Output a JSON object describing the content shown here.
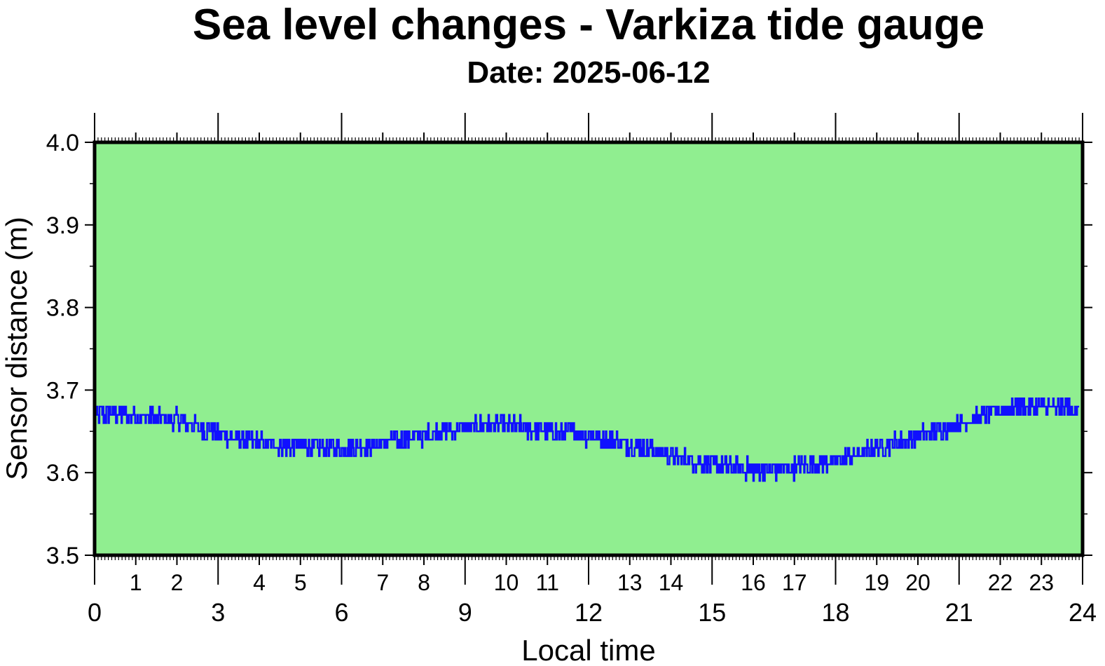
{
  "chart_data": {
    "type": "line",
    "title": "Sea level changes - Varkiza tide gauge",
    "subtitle": "Date: 2025-06-12",
    "xlabel": "Local time",
    "ylabel": "Sensor distance (m)",
    "xlim": [
      0,
      24
    ],
    "ylim": [
      3.5,
      4.0
    ],
    "x_major_ticks": [
      "0",
      "3",
      "6",
      "9",
      "12",
      "15",
      "18",
      "21",
      "24"
    ],
    "x_minor_ticks": [
      "1",
      "2",
      "4",
      "5",
      "7",
      "8",
      "10",
      "11",
      "13",
      "14",
      "16",
      "17",
      "19",
      "20",
      "22",
      "23"
    ],
    "y_ticks": [
      "3.5",
      "3.6",
      "3.7",
      "3.8",
      "3.9",
      "4.0"
    ],
    "grid": false,
    "background_color": "#90ee90",
    "line_color": "#1010ff",
    "series": [
      {
        "x": [
          0,
          0.5,
          1,
          1.5,
          2,
          2.5,
          3,
          3.5,
          4,
          4.5,
          5,
          5.5,
          6,
          6.5,
          7,
          7.5,
          8,
          8.5,
          9,
          9.5,
          10,
          10.5,
          11,
          11.5,
          12,
          12.5,
          13,
          13.5,
          14,
          14.5,
          15,
          15.5,
          16,
          16.5,
          17,
          17.5,
          18,
          18.5,
          19,
          19.5,
          20,
          20.5,
          21,
          21.5,
          22,
          22.5,
          23,
          23.5,
          24
        ],
        "y": [
          3.67,
          3.672,
          3.668,
          3.666,
          3.664,
          3.656,
          3.648,
          3.64,
          3.636,
          3.634,
          3.632,
          3.63,
          3.63,
          3.632,
          3.636,
          3.64,
          3.645,
          3.65,
          3.655,
          3.658,
          3.656,
          3.654,
          3.65,
          3.648,
          3.645,
          3.64,
          3.634,
          3.628,
          3.62,
          3.614,
          3.61,
          3.606,
          3.604,
          3.604,
          3.606,
          3.61,
          3.614,
          3.622,
          3.63,
          3.638,
          3.645,
          3.652,
          3.66,
          3.668,
          3.675,
          3.68,
          3.68,
          3.678,
          3.678
        ]
      }
    ]
  }
}
